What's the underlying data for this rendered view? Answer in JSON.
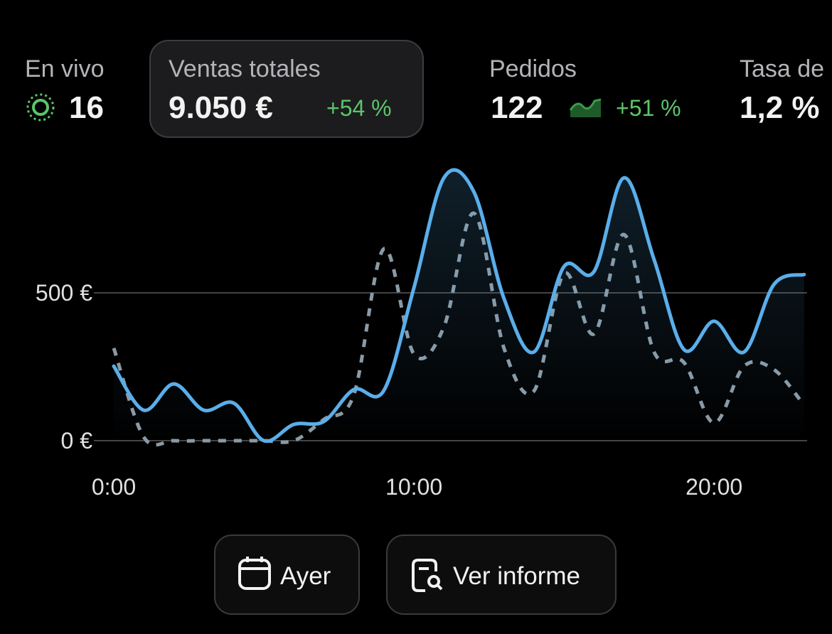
{
  "metrics": [
    {
      "label": "En vivo",
      "value": "16"
    },
    {
      "label": "Ventas totales",
      "value": "9.050 €",
      "change": "+54 %"
    },
    {
      "label": "Pedidos",
      "value": "122",
      "change": "+51 %"
    },
    {
      "label": "Tasa de",
      "value": "1,2 %"
    }
  ],
  "chart_data": {
    "type": "line",
    "x": [
      0,
      1,
      2,
      3,
      4,
      5,
      6,
      7,
      8,
      9,
      10,
      11,
      12,
      13,
      14,
      15,
      16,
      17,
      18,
      19,
      20,
      21,
      22,
      23
    ],
    "series": [
      {
        "color": "#5aaeea",
        "line_style": "solid",
        "area": true,
        "values": [
          252,
          103,
          192,
          103,
          127,
          0,
          55,
          65,
          173,
          170,
          517,
          889,
          841,
          481,
          300,
          589,
          572,
          889,
          613,
          308,
          404,
          300,
          529,
          562
        ]
      },
      {
        "color": "#8a9aa5",
        "line_style": "dashed",
        "area": false,
        "values": [
          313,
          12,
          0,
          0,
          0,
          0,
          0,
          72,
          156,
          649,
          293,
          385,
          769,
          313,
          168,
          565,
          361,
          697,
          300,
          264,
          60,
          252,
          240,
          120
        ]
      }
    ],
    "xlim": [
      0,
      23.1
    ],
    "xticks": [
      {
        "value": 0,
        "label": "0:00"
      },
      {
        "value": 10,
        "label": "10:00"
      },
      {
        "value": 20,
        "label": "20:00"
      }
    ],
    "ylim": [
      0,
      950
    ],
    "yticks": [
      {
        "value": 0,
        "label": "0 €"
      },
      {
        "value": 500,
        "label": "500 €"
      }
    ],
    "grid": true
  },
  "buttons": [
    {
      "label": "Ayer"
    },
    {
      "label": "Ver informe"
    }
  ]
}
